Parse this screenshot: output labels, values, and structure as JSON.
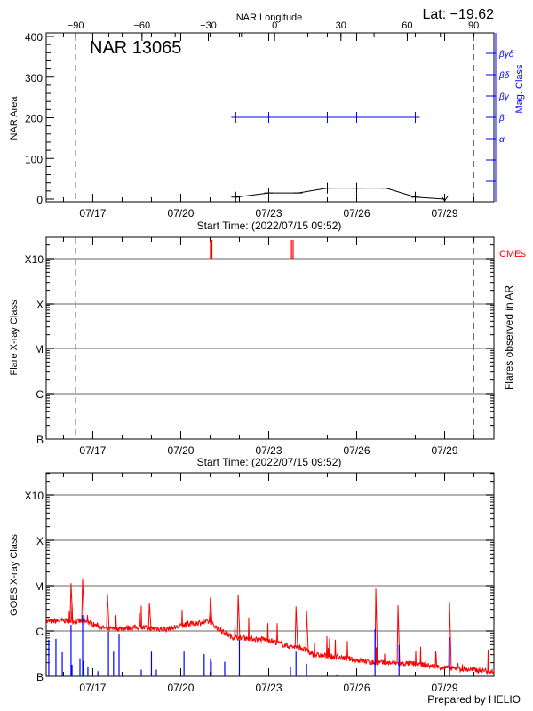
{
  "header": {
    "lat_label": "Lat: −19.62",
    "region_title": "NAR 13065",
    "prepared_by": "Prepared by HELIO"
  },
  "colors": {
    "area": "#000000",
    "mag_class": "#0000ff",
    "goes_long": "#ff0000",
    "goes_short": "#0000ff",
    "cme": "#ff0000",
    "grid": "#999999"
  },
  "time_axis": {
    "start_label": "Start Time: (2022/07/15 09:52)",
    "xlim": [
      "07/15 09:52",
      "07/30 16:20"
    ],
    "tick_labels": [
      "07/17",
      "07/20",
      "07/23",
      "07/26",
      "07/29"
    ],
    "tick_dates": [
      "07/17 00:00",
      "07/20 00:00",
      "07/23 00:00",
      "07/26 00:00",
      "07/29 00:00"
    ]
  },
  "chart_data": [
    {
      "type": "line",
      "title": "NAR 13065",
      "xlabel": "Start Time: (2022/07/15 09:52)",
      "ylabel": "NAR Area",
      "ylim": [
        0,
        400
      ],
      "yticks": [
        "0",
        "100",
        "200",
        "300",
        "400"
      ],
      "top_axis": {
        "label": "NAR Longitude",
        "ticks": [
          "-90",
          "-60",
          "-30",
          "0",
          "30",
          "60",
          "90"
        ],
        "lon_range": [
          -90,
          90
        ],
        "lon_range_dates": [
          "07/16 10:00",
          "07/29 23:40"
        ]
      },
      "limb_lines": [
        "07/16 10:00",
        "07/29 23:40"
      ],
      "area_series": {
        "x": [
          "07/21 21:00",
          "07/23 00:00",
          "07/24 00:00",
          "07/25 00:00",
          "07/26 00:00",
          "07/27 00:00",
          "07/28 00:00",
          "07/29 00:00"
        ],
        "values": [
          5,
          15,
          15,
          27,
          27,
          27,
          5,
          0
        ]
      },
      "mag_class_axis": {
        "label": "Mag. Class",
        "ticks": [
          "α",
          "β",
          "βγ",
          "βδ",
          "βγδ"
        ]
      },
      "mag_class_series": {
        "x": [
          "07/21 21:00",
          "07/23 00:00",
          "07/24 00:00",
          "07/25 00:00",
          "07/26 00:00",
          "07/27 00:00",
          "07/28 00:00"
        ],
        "values": [
          "β",
          "β",
          "β",
          "β",
          "β",
          "β",
          "β"
        ]
      }
    },
    {
      "type": "scatter",
      "ylabel": "Flare X-ray Class",
      "right_label": "Flares observed in AR",
      "yticks": [
        "B",
        "C",
        "M",
        "X",
        "X10"
      ],
      "y_scale": "log",
      "grid": true,
      "limb_lines": [
        "07/16 10:00",
        "07/29 23:40"
      ],
      "flares": [],
      "cme_label": "CMEs",
      "cmes": [
        "07/21 00:20",
        "07/21 01:30",
        "07/23 18:40",
        "07/23 20:00"
      ]
    },
    {
      "type": "line",
      "ylabel": "GOES X-ray Class",
      "yticks": [
        "B",
        "C",
        "M",
        "X",
        "X10"
      ],
      "y_scale": "log",
      "grid": true,
      "flux_units": "W/m^2",
      "long_channel_background": {
        "x": [
          "07/15 09:52",
          "07/16 00:00",
          "07/16 18:00",
          "07/17 12:00",
          "07/18 12:00",
          "07/19 12:00",
          "07/20 12:00",
          "07/21 00:00",
          "07/21 06:00",
          "07/21 18:00",
          "07/23 00:00",
          "07/23 16:00",
          "07/24 02:00",
          "07/24 12:00",
          "07/25 10:00",
          "07/26 15:00",
          "07/27 22:00",
          "07/29 04:00",
          "07/30 16:20"
        ],
        "values": [
          1.6e-06,
          1.7e-06,
          1.6e-06,
          1.1e-06,
          1.2e-06,
          1.1e-06,
          1.5e-06,
          1.6e-06,
          1.15e-06,
          7.3e-07,
          6.4e-07,
          4.6e-07,
          4.4e-07,
          3e-07,
          2.6e-07,
          2e-07,
          1.9e-07,
          1.5e-07,
          1.3e-07
        ]
      },
      "long_channel_peaks": {
        "x": [
          "07/16 06:10",
          "07/16 15:40",
          "07/17 12:00",
          "07/18 22:20",
          "07/21 00:15",
          "07/21 23:00",
          "07/23 22:20",
          "07/24 07:00",
          "07/26 15:40",
          "07/27 09:50",
          "07/29 04:00"
        ],
        "values": [
          1.14e-05,
          1.44e-05,
          6.6e-06,
          4.1e-06,
          5.5e-06,
          6.4e-06,
          3.5e-06,
          2.7e-06,
          8.7e-06,
          3.7e-06,
          4.4e-06
        ]
      },
      "short_channel_peaks": {
        "x": [
          "07/15 12:00",
          "07/15 17:50",
          "07/15 23:00",
          "07/16 06:10",
          "07/16 07:00",
          "07/16 13:30",
          "07/16 15:40",
          "07/16 16:20",
          "07/16 20:00",
          "07/17 04:10",
          "07/17 12:50",
          "07/17 17:00",
          "07/17 21:30",
          "07/18 15:40",
          "07/19 00:00",
          "07/19 04:00",
          "07/20 02:40",
          "07/20 19:10",
          "07/21 00:20",
          "07/21 01:00",
          "07/21 12:00",
          "07/22 00:00",
          "07/23 17:50",
          "07/23 22:20",
          "07/24 07:00",
          "07/25 07:40",
          "07/26 15:00",
          "07/27 10:40",
          "07/29 04:00"
        ],
        "values": [
          6.4e-07,
          6.7e-07,
          3.4e-07,
          1.37e-06,
          1.8e-07,
          2.5e-07,
          2.25e-06,
          2.2e-07,
          1.6e-07,
          1.3e-07,
          9.6e-07,
          3.5e-07,
          8.7e-07,
          1.4e-07,
          3.5e-07,
          1.4e-07,
          3.5e-07,
          3.1e-07,
          2.5e-07,
          2.1e-07,
          2.1e-07,
          6.4e-07,
          1.6e-07,
          3.5e-07,
          1.9e-07,
          1.1e-07,
          1.1e-06,
          4.9e-07,
          7.3e-07
        ]
      }
    }
  ]
}
